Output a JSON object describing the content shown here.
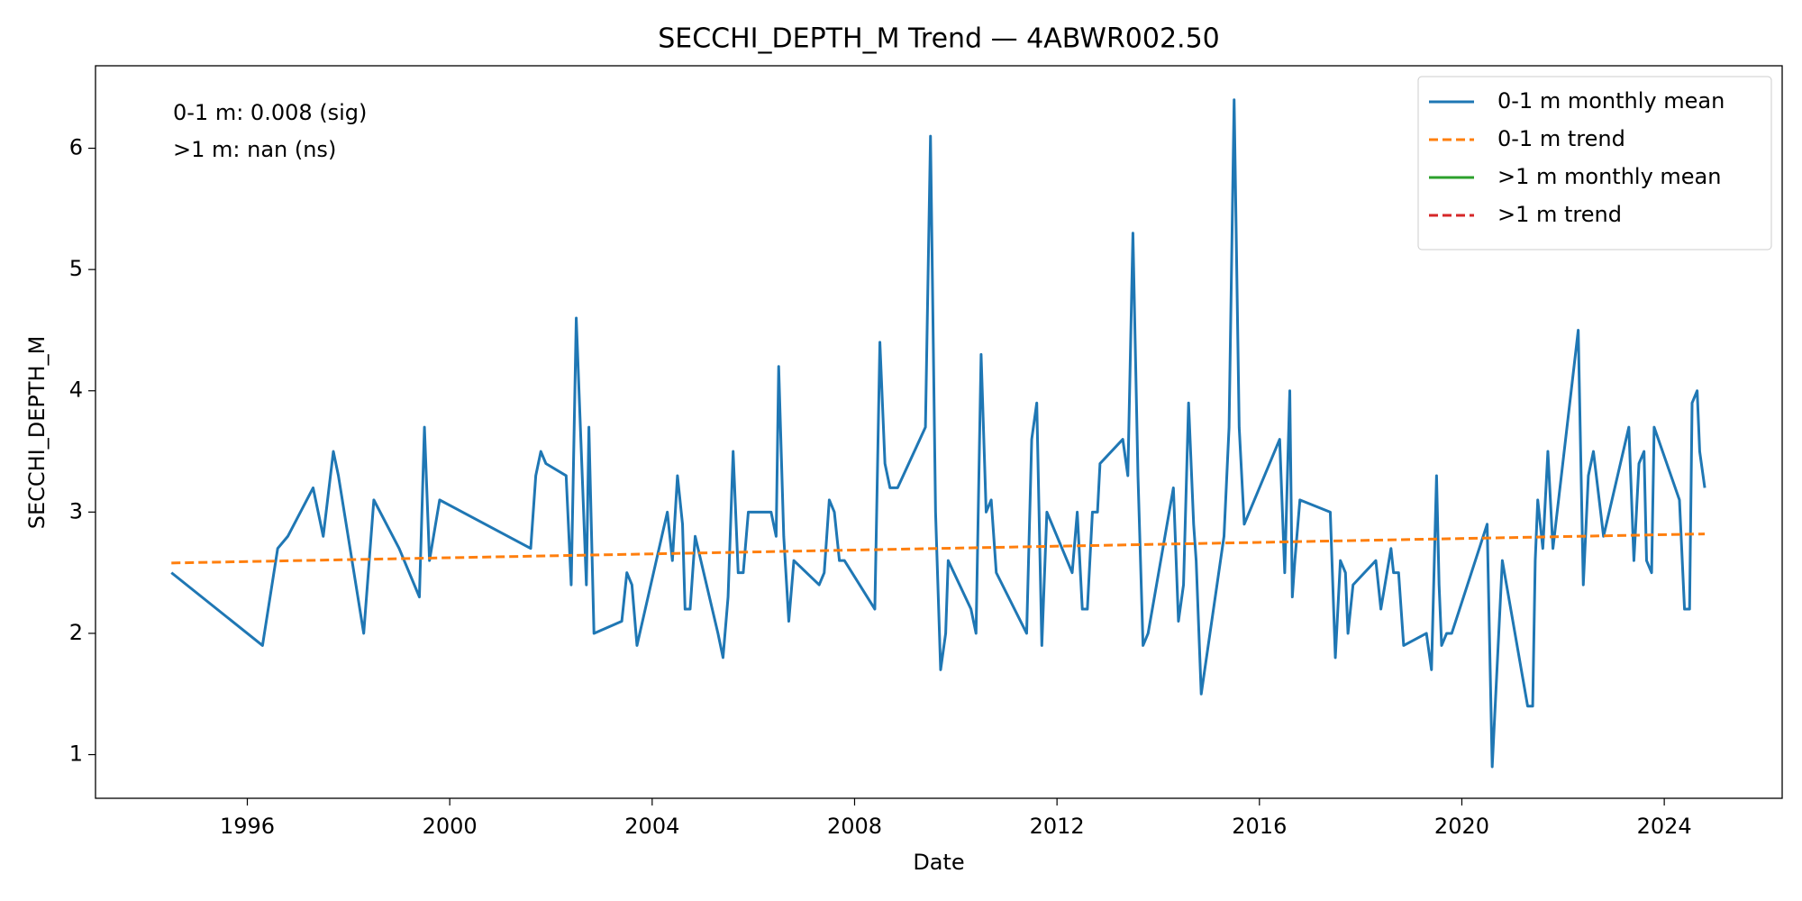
{
  "chart_data": {
    "type": "line",
    "title": "SECCHI_DEPTH_M Trend — 4ABWR002.50",
    "x_label": "Date",
    "y_label": "SECCHI_DEPTH_M",
    "annotations": [
      "0-1 m: 0.008 (sig)",
      ">1 m: nan (ns)"
    ],
    "xlim": [
      1993.0,
      2026.33
    ],
    "xticks": [
      1996,
      2000,
      2004,
      2008,
      2012,
      2016,
      2020,
      2024
    ],
    "ylim": [
      0.64,
      6.68
    ],
    "yticks": [
      1,
      2,
      3,
      4,
      5,
      6
    ],
    "grid": false,
    "legend_position": "upper right",
    "series": [
      {
        "name": "0-1 m monthly mean",
        "color": "#1f77b4",
        "linestyle": "solid",
        "x": [
          1994.5,
          1996.3,
          1996.6,
          1996.8,
          1997.3,
          1997.5,
          1997.7,
          1997.8,
          1998.3,
          1998.5,
          1999.0,
          1999.4,
          1999.5,
          1999.6,
          1999.8,
          2001.6,
          2001.7,
          2001.8,
          2001.9,
          2002.3,
          2002.4,
          2002.5,
          2002.7,
          2002.75,
          2002.85,
          2003.4,
          2003.5,
          2003.6,
          2003.7,
          2004.3,
          2004.4,
          2004.5,
          2004.6,
          2004.65,
          2004.75,
          2004.85,
          2005.3,
          2005.4,
          2005.5,
          2005.6,
          2005.7,
          2005.8,
          2005.9,
          2006.35,
          2006.45,
          2006.5,
          2006.6,
          2006.7,
          2006.8,
          2007.3,
          2007.4,
          2007.5,
          2007.6,
          2007.7,
          2007.8,
          2008.4,
          2008.5,
          2008.6,
          2008.7,
          2008.85,
          2009.4,
          2009.5,
          2009.6,
          2009.7,
          2009.8,
          2009.85,
          2010.3,
          2010.4,
          2010.5,
          2010.6,
          2010.7,
          2010.8,
          2011.4,
          2011.5,
          2011.6,
          2011.7,
          2011.8,
          2012.3,
          2012.4,
          2012.5,
          2012.6,
          2012.7,
          2012.8,
          2012.85,
          2013.3,
          2013.4,
          2013.5,
          2013.6,
          2013.7,
          2013.8,
          2014.3,
          2014.4,
          2014.5,
          2014.6,
          2014.7,
          2014.75,
          2014.85,
          2015.3,
          2015.4,
          2015.5,
          2015.6,
          2015.7,
          2016.4,
          2016.5,
          2016.6,
          2016.65,
          2016.7,
          2016.8,
          2017.4,
          2017.5,
          2017.6,
          2017.7,
          2017.75,
          2017.85,
          2018.3,
          2018.4,
          2018.6,
          2018.65,
          2018.75,
          2018.85,
          2019.3,
          2019.4,
          2019.5,
          2019.55,
          2019.6,
          2019.7,
          2019.8,
          2020.5,
          2020.6,
          2020.8,
          2021.3,
          2021.4,
          2021.45,
          2021.5,
          2021.6,
          2021.7,
          2021.8,
          2022.3,
          2022.4,
          2022.5,
          2022.6,
          2022.8,
          2023.3,
          2023.4,
          2023.5,
          2023.6,
          2023.65,
          2023.75,
          2023.8,
          2024.3,
          2024.4,
          2024.5,
          2024.55,
          2024.65,
          2024.7,
          2024.8
        ],
        "values": [
          2.5,
          1.9,
          2.7,
          2.8,
          3.2,
          2.8,
          3.5,
          3.3,
          2.0,
          3.1,
          2.7,
          2.3,
          3.7,
          2.6,
          3.1,
          2.7,
          3.3,
          3.5,
          3.4,
          3.3,
          2.4,
          4.6,
          2.4,
          3.7,
          2.0,
          2.1,
          2.5,
          2.4,
          1.9,
          3.0,
          2.6,
          3.3,
          2.9,
          2.2,
          2.2,
          2.8,
          2.0,
          1.8,
          2.3,
          3.5,
          2.5,
          2.5,
          3.0,
          3.0,
          2.8,
          4.2,
          2.8,
          2.1,
          2.6,
          2.4,
          2.5,
          3.1,
          3.0,
          2.6,
          2.6,
          2.2,
          4.4,
          3.4,
          3.2,
          3.2,
          3.7,
          6.1,
          3.0,
          1.7,
          2.0,
          2.6,
          2.2,
          2.0,
          4.3,
          3.0,
          3.1,
          2.5,
          2.0,
          3.6,
          3.9,
          1.9,
          3.0,
          2.5,
          3.0,
          2.2,
          2.2,
          3.0,
          3.0,
          3.4,
          3.6,
          3.3,
          5.3,
          3.3,
          1.9,
          2.0,
          3.2,
          2.1,
          2.4,
          3.9,
          2.9,
          2.6,
          1.5,
          2.8,
          3.7,
          6.4,
          3.7,
          2.9,
          3.6,
          2.5,
          4.0,
          2.3,
          2.6,
          3.1,
          3.0,
          1.8,
          2.6,
          2.5,
          2.0,
          2.4,
          2.6,
          2.2,
          2.7,
          2.5,
          2.5,
          1.9,
          2.0,
          1.7,
          3.3,
          2.4,
          1.9,
          2.0,
          2.0,
          2.9,
          0.9,
          2.6,
          1.4,
          1.4,
          2.6,
          3.1,
          2.7,
          3.5,
          2.7,
          4.5,
          2.4,
          3.3,
          3.5,
          2.8,
          3.7,
          2.6,
          3.4,
          3.5,
          2.6,
          2.5,
          3.7,
          3.1,
          2.2,
          2.2,
          3.9,
          4.0,
          3.5,
          3.2
        ]
      },
      {
        "name": "0-1 m trend",
        "color": "#ff7f0e",
        "linestyle": "dashed",
        "x": [
          1994.5,
          2024.8
        ],
        "values": [
          2.58,
          2.82
        ]
      },
      {
        "name": ">1 m monthly mean",
        "color": "#2ca02c",
        "linestyle": "solid",
        "x": [],
        "values": []
      },
      {
        "name": ">1 m trend",
        "color": "#d62728",
        "linestyle": "dashed",
        "x": [],
        "values": []
      }
    ]
  }
}
